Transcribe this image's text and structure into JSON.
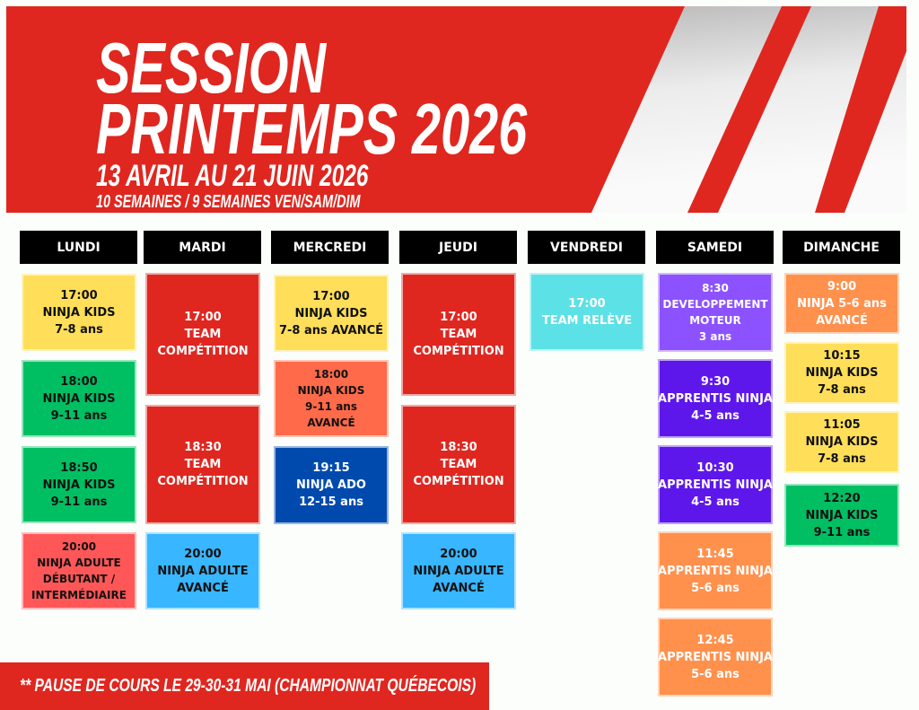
{
  "header": {
    "title_line1": "SESSION",
    "title_line2": "PRINTEMPS 2026",
    "dates": "13 AVRIL AU 21 JUIN 2026",
    "weeks": "10 SEMAINES  / 9 SEMAINES VEN/SAM/DIM"
  },
  "colors": {
    "brand_red": "#df2720",
    "yellow": "#ffde59",
    "green": "#00bf63",
    "coral": "#ff5757",
    "light_blue": "#38b6ff",
    "orange_red": "#ff6a4a",
    "dark_blue": "#004aad",
    "cyan": "#5ce1e6",
    "lavender": "#8c52ff",
    "violet": "#5e17eb",
    "orange": "#ff914d"
  },
  "days": [
    {
      "label": "LUNDI",
      "classes": [
        {
          "lines": [
            "17:00",
            "NINJA KIDS",
            "7-8 ans"
          ]
        },
        {
          "lines": [
            "18:00",
            "NINJA KIDS",
            "9-11 ans"
          ]
        },
        {
          "lines": [
            "18:50",
            "NINJA KIDS",
            "9-11 ans"
          ]
        },
        {
          "lines": [
            "20:00",
            "NINJA ADULTE",
            "DÉBUTANT /",
            "INTERMÉDIAIRE"
          ]
        }
      ]
    },
    {
      "label": "MARDI",
      "classes": [
        {
          "lines": [
            "17:00",
            "TEAM",
            "COMPÉTITION"
          ]
        },
        {
          "lines": [
            "18:30",
            "TEAM",
            "COMPÉTITION"
          ]
        },
        {
          "lines": [
            "20:00",
            "NINJA ADULTE",
            "AVANCÉ"
          ]
        }
      ]
    },
    {
      "label": "MERCREDI",
      "classes": [
        {
          "lines": [
            "17:00",
            "NINJA KIDS",
            "7-8 ans AVANCÉ"
          ]
        },
        {
          "lines": [
            "18:00",
            "NINJA KIDS",
            "9-11 ans",
            "AVANCÉ"
          ]
        },
        {
          "lines": [
            "19:15",
            "NINJA ADO",
            "12-15 ans"
          ]
        }
      ]
    },
    {
      "label": "JEUDI",
      "classes": [
        {
          "lines": [
            "17:00",
            "TEAM",
            "COMPÉTITION"
          ]
        },
        {
          "lines": [
            "18:30",
            "TEAM",
            "COMPÉTITION"
          ]
        },
        {
          "lines": [
            "20:00",
            "NINJA ADULTE",
            "AVANCÉ"
          ]
        }
      ]
    },
    {
      "label": "VENDREDI",
      "classes": [
        {
          "lines": [
            "17:00",
            "TEAM RELÈVE"
          ]
        }
      ]
    },
    {
      "label": "SAMEDI",
      "classes": [
        {
          "lines": [
            "8:30",
            "DEVELOPPEMENT",
            "MOTEUR",
            "3 ans"
          ]
        },
        {
          "lines": [
            "9:30",
            "APPRENTIS NINJA",
            "4-5 ans"
          ]
        },
        {
          "lines": [
            "10:30",
            "APPRENTIS NINJA",
            "4-5 ans"
          ]
        },
        {
          "lines": [
            "11:45",
            "APPRENTIS NINJA",
            "5-6 ans"
          ]
        },
        {
          "lines": [
            "12:45",
            "APPRENTIS NINJA",
            "5-6 ans"
          ]
        }
      ]
    },
    {
      "label": "DIMANCHE",
      "classes": [
        {
          "lines": [
            "9:00",
            "NINJA 5-6 ans",
            "AVANCÉ"
          ]
        },
        {
          "lines": [
            "10:15",
            "NINJA KIDS",
            "7-8 ans"
          ]
        },
        {
          "lines": [
            "11:05",
            "NINJA KIDS",
            "7-8 ans"
          ]
        },
        {
          "lines": [
            "12:20",
            "NINJA KIDS",
            "9-11 ans"
          ]
        }
      ]
    }
  ],
  "footer": {
    "note": "** PAUSE DE COURS LE 29-30-31 MAI (CHAMPIONNAT QUÉBECOIS)"
  }
}
